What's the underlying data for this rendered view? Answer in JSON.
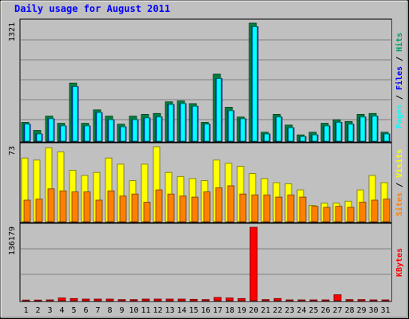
{
  "chart_data": {
    "title": "Daily usage for August 2011",
    "days": [
      "1",
      "2",
      "3",
      "4",
      "5",
      "6",
      "7",
      "8",
      "9",
      "10",
      "11",
      "12",
      "13",
      "14",
      "15",
      "16",
      "17",
      "18",
      "19",
      "20",
      "21",
      "22",
      "23",
      "24",
      "25",
      "26",
      "27",
      "28",
      "29",
      "30",
      "31"
    ],
    "weekend_days": [
      "6",
      "7",
      "13",
      "14",
      "20",
      "21",
      "27",
      "28"
    ],
    "panels": [
      {
        "type": "bar",
        "max_label": "1321",
        "max": 1321,
        "series": [
          {
            "name": "Hits",
            "color": "#008040",
            "values": [
              210,
              120,
              280,
              200,
              650,
              200,
              350,
              280,
              190,
              280,
              300,
              310,
              440,
              450,
              420,
              210,
              750,
              380,
              270,
              1321,
              100,
              300,
              180,
              70,
              100,
              200,
              240,
              220,
              300,
              310,
              100
            ]
          },
          {
            "name": "Files",
            "color": "#0000ff",
            "values": [
              190,
              80,
              250,
              170,
              610,
              170,
              320,
              240,
              160,
              240,
              260,
              270,
              410,
              420,
              390,
              190,
              700,
              340,
              250,
              1280,
              80,
              270,
              150,
              50,
              70,
              170,
              210,
              190,
              270,
              280,
              80
            ]
          },
          {
            "name": "Pages",
            "color": "#00ffff",
            "values": [
              190,
              80,
              250,
              170,
              610,
              170,
              320,
              240,
              160,
              240,
              260,
              270,
              410,
              420,
              390,
              190,
              700,
              340,
              250,
              1280,
              80,
              270,
              150,
              50,
              70,
              170,
              210,
              190,
              270,
              280,
              80
            ]
          }
        ]
      },
      {
        "type": "bar",
        "max_label": "73",
        "max": 73,
        "series": [
          {
            "name": "Visits",
            "color": "#ffff00",
            "values": [
              62,
              60,
              72,
              68,
              50,
              45,
              48,
              62,
              56,
              40,
              56,
              73,
              48,
              44,
              42,
              40,
              60,
              57,
              54,
              47,
              42,
              38,
              37,
              31,
              16,
              18,
              18,
              20,
              31,
              45,
              38
            ]
          },
          {
            "name": "Sites",
            "color": "#ff8000",
            "values": [
              21,
              22,
              32,
              30,
              29,
              29,
              21,
              30,
              25,
              27,
              19,
              31,
              27,
              25,
              24,
              29,
              33,
              35,
              27,
              26,
              26,
              24,
              26,
              24,
              15,
              14,
              15,
              14,
              19,
              21,
              22
            ]
          }
        ]
      },
      {
        "type": "bar",
        "max_label": "136179",
        "max": 136179,
        "series": [
          {
            "name": "KBytes",
            "color": "#ff0000",
            "values": [
              1200,
              1200,
              1500,
              5000,
              4000,
              3000,
              3000,
              3000,
              2000,
              2000,
              3000,
              3000,
              3000,
              3000,
              2500,
              2000,
              6000,
              5000,
              4000,
              136179,
              2000,
              4000,
              1500,
              1500,
              1500,
              1500,
              11000,
              2000,
              2000,
              1500,
              1500
            ]
          }
        ]
      }
    ]
  }
}
